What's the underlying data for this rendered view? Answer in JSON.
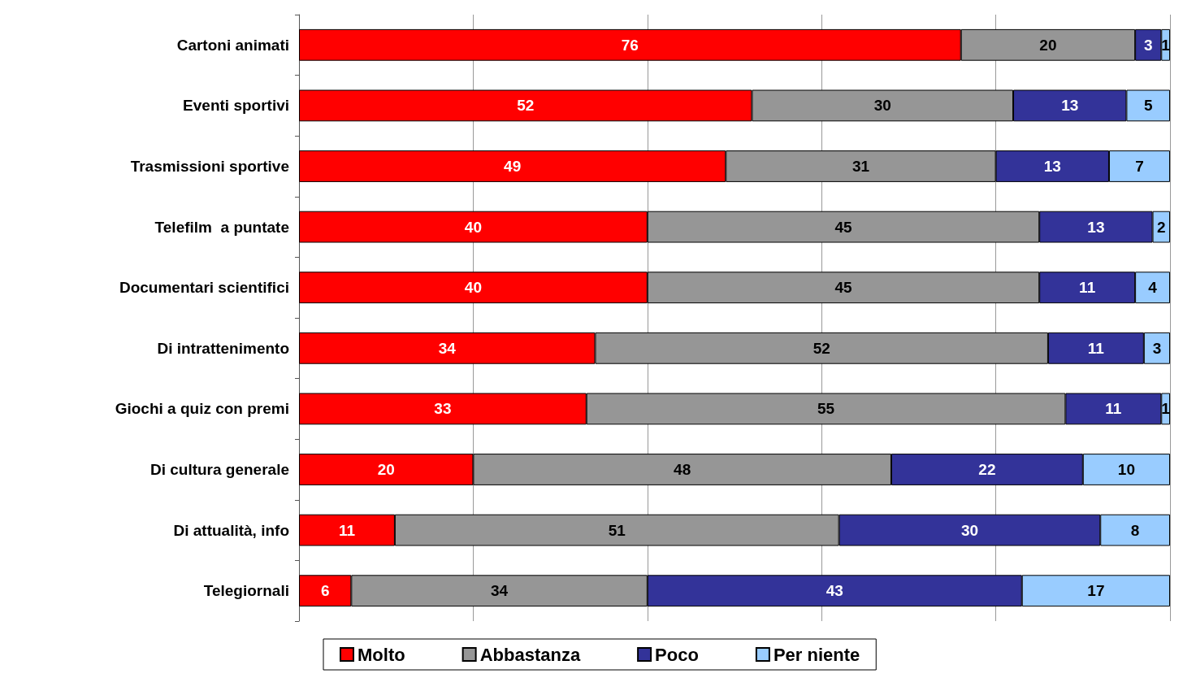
{
  "chart_data": {
    "type": "bar",
    "orientation": "horizontal",
    "stacked": true,
    "data_labels": true,
    "grid": "x",
    "legend": "bottom",
    "tick_labels": "y",
    "xlim": [
      0,
      100
    ],
    "xticks": [
      0,
      20,
      40,
      60,
      80,
      100
    ],
    "categories": [
      "Cartoni animati",
      "Eventi sportivi",
      "Trasmissioni sportive",
      "Telefilm  a puntate",
      "Documentari scientifici",
      "Di intrattenimento",
      "Giochi a quiz con premi",
      "Di cultura generale",
      "Di attualità, info",
      "Telegiornali"
    ],
    "series": [
      {
        "name": "Molto",
        "color": "#ff0000",
        "values": [
          76,
          52,
          49,
          40,
          40,
          34,
          33,
          20,
          11,
          6
        ]
      },
      {
        "name": "Abbastanza",
        "color": "#969696",
        "values": [
          20,
          30,
          31,
          45,
          45,
          52,
          55,
          48,
          51,
          34
        ]
      },
      {
        "name": "Poco",
        "color": "#333399",
        "values": [
          3,
          13,
          13,
          13,
          11,
          11,
          11,
          22,
          30,
          43
        ]
      },
      {
        "name": "Per niente",
        "color": "#99ccff",
        "values": [
          1,
          5,
          7,
          2,
          4,
          3,
          1,
          10,
          8,
          17
        ]
      }
    ]
  }
}
